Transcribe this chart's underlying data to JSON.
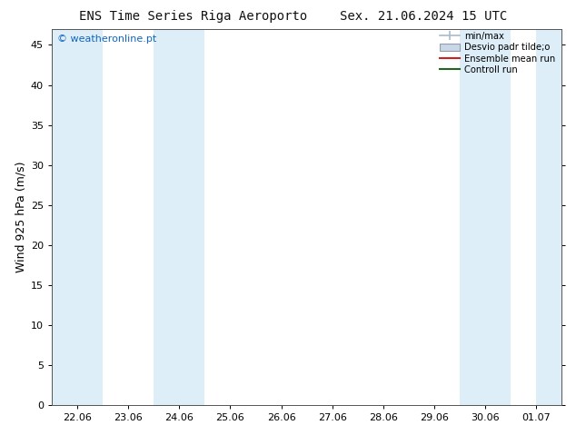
{
  "title_left": "ENS Time Series Riga Aeroporto",
  "title_right": "Sex. 21.06.2024 15 UTC",
  "watermark": "© weatheronline.pt",
  "ylabel": "Wind 925 hPa (m/s)",
  "ylim": [
    0,
    47
  ],
  "yticks": [
    0,
    5,
    10,
    15,
    20,
    25,
    30,
    35,
    40,
    45
  ],
  "xtick_labels": [
    "22.06",
    "23.06",
    "24.06",
    "25.06",
    "26.06",
    "27.06",
    "28.06",
    "29.06",
    "30.06",
    "01.07"
  ],
  "num_ticks": 10,
  "xlim_left": -0.5,
  "xlim_right": 9.5,
  "shaded_bands": [
    {
      "x_start": -0.5,
      "x_end": 0.5,
      "color": "#ddeef8"
    },
    {
      "x_start": 1.5,
      "x_end": 2.5,
      "color": "#ddeef8"
    },
    {
      "x_start": 7.5,
      "x_end": 8.5,
      "color": "#ddeef8"
    },
    {
      "x_start": 9.0,
      "x_end": 9.5,
      "color": "#ddeef8"
    }
  ],
  "legend_labels": [
    "min/max",
    "Desvio padr tilde;o",
    "Ensemble mean run",
    "Controll run"
  ],
  "legend_colors_line": [
    "#aabbcc",
    "#cc2222",
    "#226622"
  ],
  "bg_color": "#ffffff",
  "plot_bg_color": "#ffffff",
  "title_fontsize": 10,
  "tick_fontsize": 8,
  "ylabel_fontsize": 9,
  "watermark_color": "#1166bb",
  "watermark_fontsize": 8
}
